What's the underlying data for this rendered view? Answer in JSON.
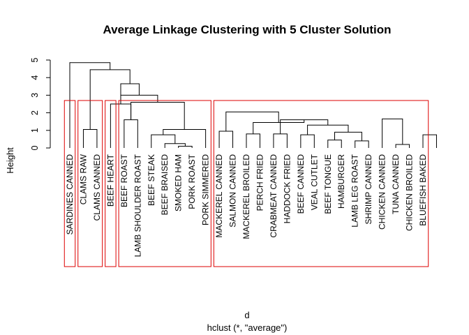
{
  "chart_data": {
    "type": "dendrogram",
    "title": "Average Linkage Clustering with 5 Cluster Solution",
    "xlabel": "d",
    "sub": "hclust (*, \"average\")",
    "ylabel": "Height",
    "ylim": [
      0,
      5
    ],
    "yticks": [
      "0",
      "1",
      "2",
      "3",
      "4",
      "5"
    ],
    "leaves": [
      "SARDINES CANNED",
      "CLAMS RAW",
      "CLAMS CANNED",
      "BEEF HEART",
      "BEEF ROAST",
      "LAMB SHOULDER ROAST",
      "BEEF STEAK",
      "BEEF BRAISED",
      "SMOKED HAM",
      "PORK ROAST",
      "PORK SIMMERED",
      "MACKEREL CANNED",
      "SALMON CANNED",
      "MACKEREL BROILED",
      "PERCH FRIED",
      "CRABMEAT CANNED",
      "HADDOCK FRIED",
      "BEEF CANNED",
      "VEAL CUTLET",
      "BEEF TONGUE",
      "HAMBURGER",
      "LAMB LEG ROAST",
      "SHRIMP CANNED",
      "CHICKEN CANNED",
      "TUNA CANNED",
      "CHICKEN BROILED",
      "BLUEFISH BAKED"
    ],
    "merges": [
      [
        -9,
        -10,
        0.1
      ],
      [
        -8,
        1,
        0.25
      ],
      [
        -25,
        -26,
        0.2
      ],
      [
        -22,
        -23,
        0.4
      ],
      [
        -20,
        -21,
        0.45
      ],
      [
        -7,
        2,
        0.75
      ],
      [
        -18,
        -19,
        0.75
      ],
      [
        -16,
        -17,
        0.8
      ],
      [
        -27,
        -28,
        0.75
      ],
      [
        -14,
        -15,
        0.8
      ],
      [
        -12,
        -13,
        0.95
      ],
      [
        -2,
        -3,
        1.05
      ],
      [
        -11,
        6,
        1.05
      ],
      [
        -24,
        3,
        1.65
      ],
      [
        5,
        4,
        0.9
      ],
      [
        7,
        15,
        1.3
      ],
      [
        8,
        16,
        1.6
      ],
      [
        10,
        17,
        1.45
      ],
      [
        11,
        18,
        2.05
      ],
      [
        -5,
        -6,
        1.6
      ],
      [
        -4,
        20,
        2.5
      ],
      [
        20,
        13,
        2.6
      ],
      [
        21,
        22,
        3.0
      ],
      [
        21,
        23,
        3.65
      ],
      [
        12,
        24,
        4.45
      ],
      [
        -1,
        25,
        4.85
      ]
    ],
    "cluster_color": "#dd0000",
    "clusters": [
      {
        "first": 1,
        "last": 1
      },
      {
        "first": 2,
        "last": 3
      },
      {
        "first": 4,
        "last": 4
      },
      {
        "first": 5,
        "last": 11
      },
      {
        "first": 12,
        "last": 27
      }
    ]
  }
}
